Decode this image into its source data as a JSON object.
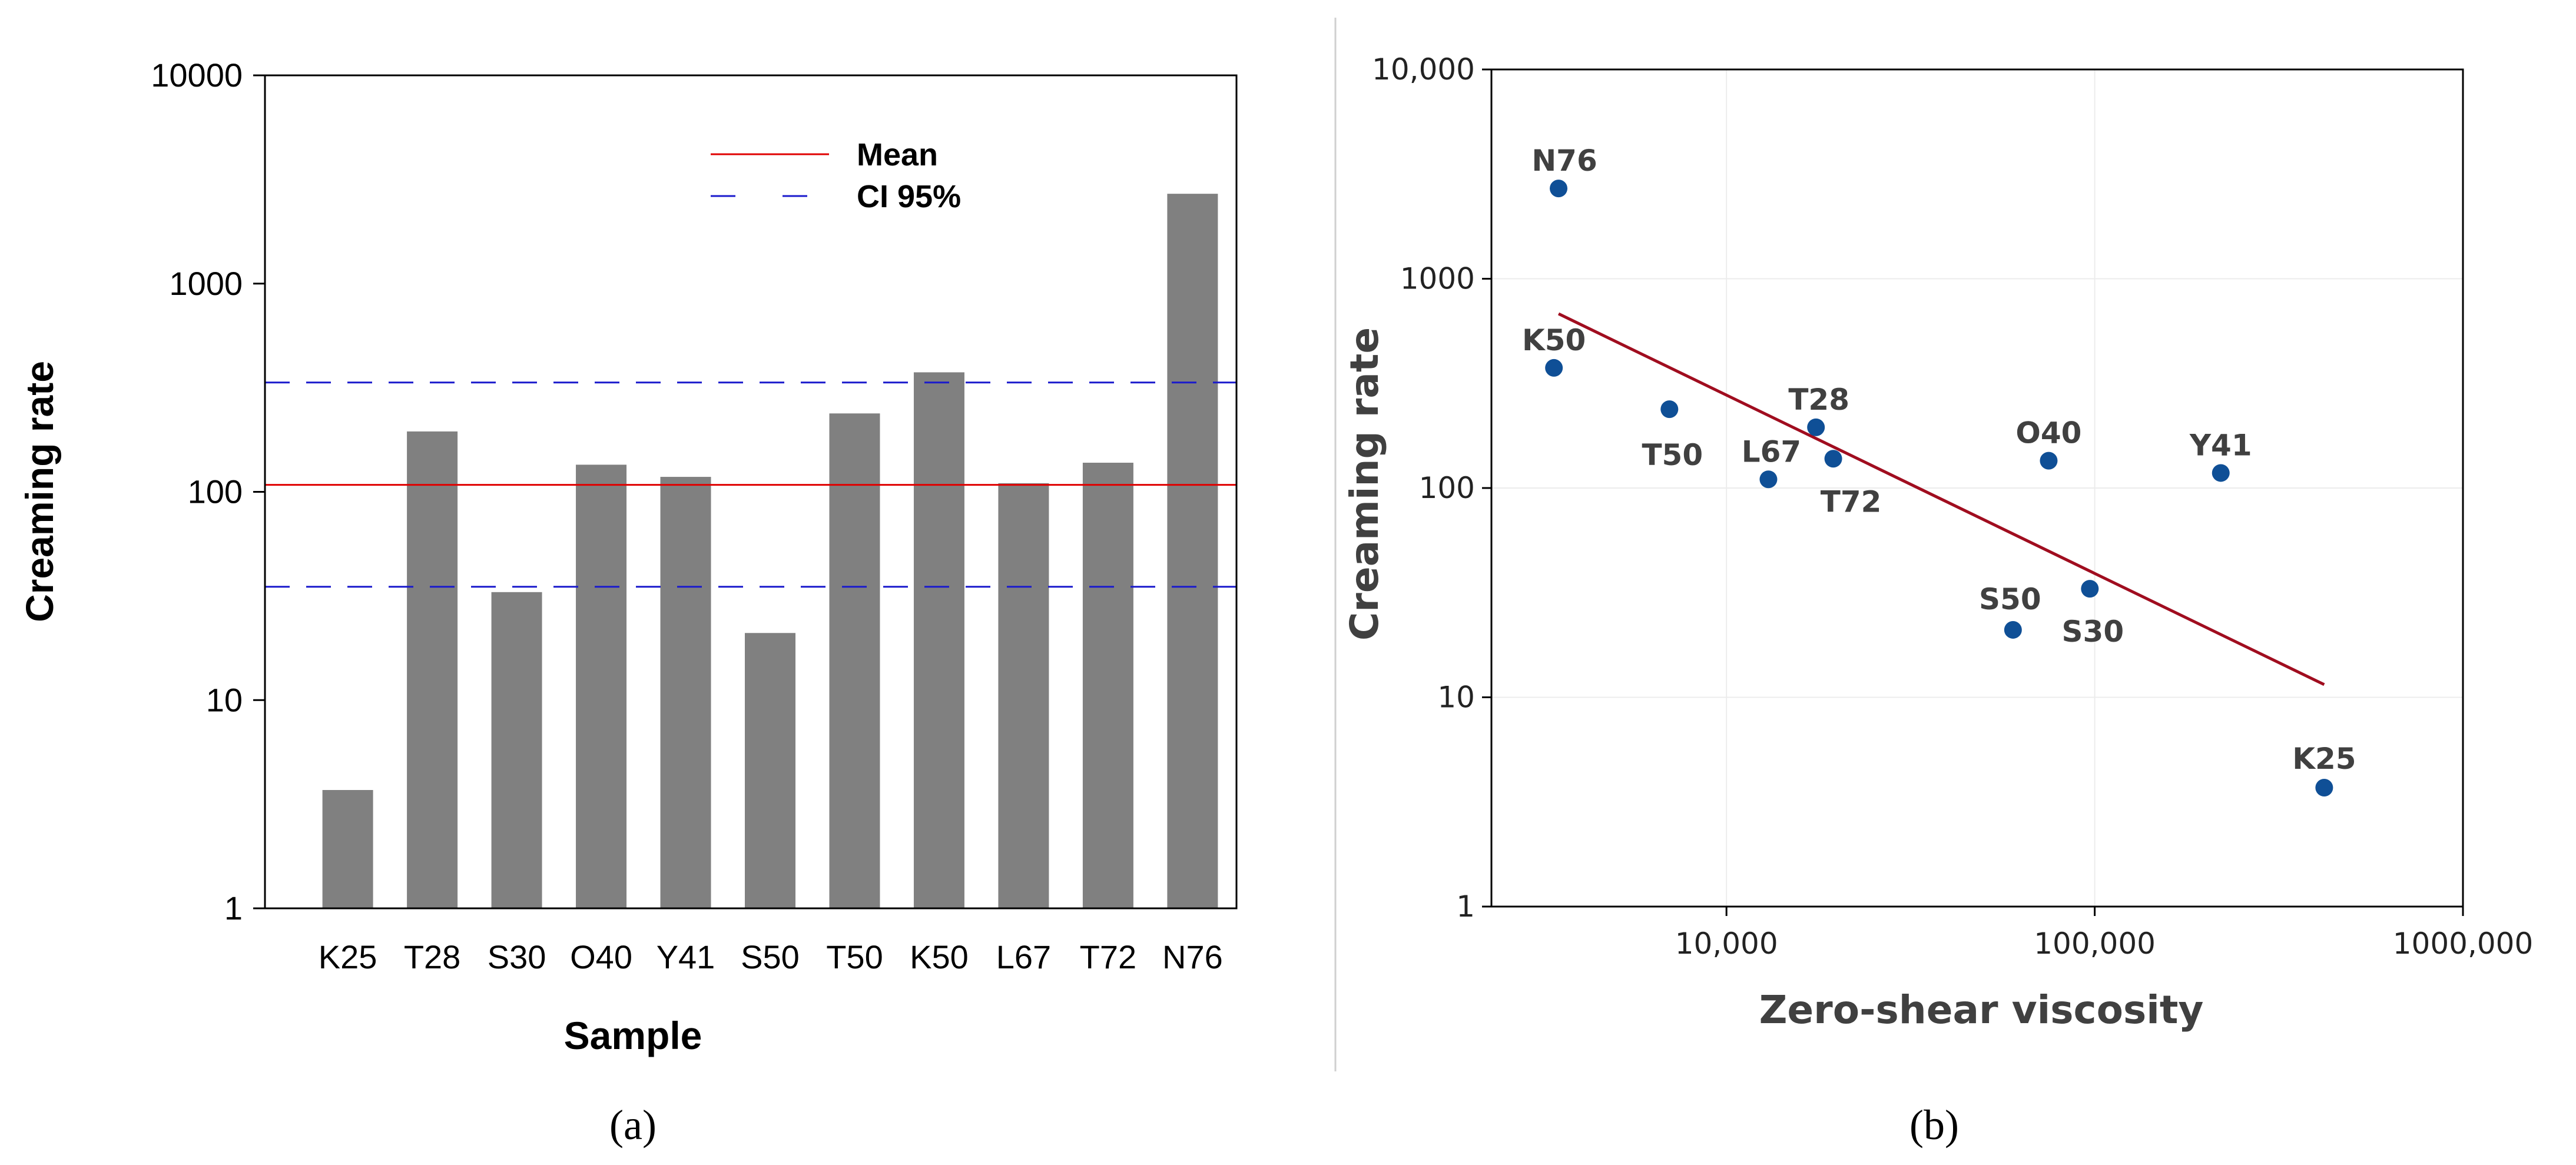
{
  "chart_data": [
    {
      "panel": "a",
      "type": "bar",
      "categories": [
        "K25",
        "T28",
        "S30",
        "O40",
        "Y41",
        "S50",
        "T50",
        "K50",
        "L67",
        "T72",
        "N76"
      ],
      "values": [
        3.7,
        195,
        33,
        135,
        118,
        21,
        238,
        375,
        110,
        138,
        2700
      ],
      "xlabel": "Sample",
      "ylabel": "Creaming rate",
      "yscale": "log",
      "ylim": [
        1,
        10000
      ],
      "yticks": [
        1,
        10,
        100,
        1000,
        10000
      ],
      "ytick_labels": [
        "1",
        "10",
        "100",
        "1000",
        "10000"
      ],
      "bar_color": "#808080",
      "mean": 108,
      "ci95": [
        35,
        335
      ],
      "legend": {
        "mean_label": "Mean",
        "ci_label": "CI 95%",
        "placement": "top-right"
      },
      "mean_color": "#e00000",
      "ci_color": "#1a1acc"
    },
    {
      "panel": "b",
      "type": "scatter",
      "points": [
        {
          "label": "N76",
          "x": 3500,
          "y": 2700
        },
        {
          "label": "K50",
          "x": 3400,
          "y": 375
        },
        {
          "label": "T50",
          "x": 7000,
          "y": 238
        },
        {
          "label": "T28",
          "x": 17500,
          "y": 195
        },
        {
          "label": "L67",
          "x": 13000,
          "y": 110
        },
        {
          "label": "T72",
          "x": 19500,
          "y": 138
        },
        {
          "label": "O40",
          "x": 75000,
          "y": 135
        },
        {
          "label": "Y41",
          "x": 220000,
          "y": 118
        },
        {
          "label": "S50",
          "x": 60000,
          "y": 21
        },
        {
          "label": "S30",
          "x": 97000,
          "y": 33
        },
        {
          "label": "K25",
          "x": 420000,
          "y": 3.7
        }
      ],
      "fit_line": {
        "x": [
          3500,
          420000
        ],
        "y": [
          680,
          11.5
        ]
      },
      "xlabel": "Zero-shear viscosity",
      "ylabel": "Creaming rate",
      "xscale": "log",
      "yscale": "log",
      "xlim": [
        2300,
        1000000
      ],
      "ylim": [
        1,
        10000
      ],
      "xticks": [
        10000,
        100000,
        1000000
      ],
      "xtick_labels": [
        "10,000",
        "100,000",
        "1000,000"
      ],
      "yticks": [
        1,
        10,
        100,
        1000,
        10000
      ],
      "ytick_labels": [
        "1",
        "10",
        "100",
        "1000",
        "10,000"
      ],
      "point_color": "#0f4f96",
      "line_color": "#a00d1f",
      "grid": true
    }
  ],
  "panel_labels": {
    "a": "(a)",
    "b": "(b)"
  }
}
